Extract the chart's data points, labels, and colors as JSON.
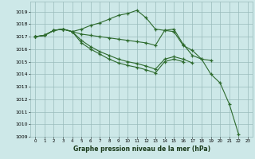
{
  "xlabel": "Graphe pression niveau de la mer (hPa)",
  "background_color": "#cde8e8",
  "grid_color": "#99bbbb",
  "line_color": "#2d6a2d",
  "xlim": [
    -0.5,
    23.5
  ],
  "ylim": [
    1009.0,
    1019.8
  ],
  "yticks": [
    1009,
    1010,
    1011,
    1012,
    1013,
    1014,
    1015,
    1016,
    1017,
    1018,
    1019
  ],
  "xticks": [
    0,
    1,
    2,
    3,
    4,
    5,
    6,
    7,
    8,
    9,
    10,
    11,
    12,
    13,
    14,
    15,
    16,
    17,
    18,
    19,
    20,
    21,
    22,
    23
  ],
  "lines": [
    {
      "x": [
        0,
        1,
        2,
        3,
        4,
        5,
        6,
        7,
        8,
        9,
        10,
        11,
        12,
        13,
        14,
        15,
        16,
        17,
        18,
        19,
        20,
        21,
        22
      ],
      "y": [
        1017.0,
        1017.1,
        1017.5,
        1017.6,
        1017.4,
        1017.6,
        1017.9,
        1018.1,
        1018.4,
        1018.7,
        1018.85,
        1019.1,
        1018.5,
        1017.6,
        1017.5,
        1017.4,
        1016.3,
        1015.9,
        1015.2,
        1014.0,
        1013.3,
        1011.6,
        1009.2
      ]
    },
    {
      "x": [
        0,
        1,
        2,
        3,
        4,
        5,
        6,
        7,
        8,
        9,
        10,
        11,
        12,
        13,
        14,
        15,
        16,
        17,
        18,
        19,
        20,
        21
      ],
      "y": [
        1017.0,
        1017.1,
        1017.5,
        1017.6,
        1017.4,
        1017.2,
        1017.1,
        1017.0,
        1016.9,
        1016.8,
        1016.7,
        1016.6,
        1016.5,
        1016.3,
        1017.5,
        1017.6,
        1016.4,
        1015.5,
        1015.2,
        1015.1,
        null,
        null
      ]
    },
    {
      "x": [
        0,
        1,
        2,
        3,
        4,
        5,
        6,
        7,
        8,
        9,
        10,
        11,
        12,
        13,
        14,
        15,
        16,
        17,
        18
      ],
      "y": [
        1017.0,
        1017.1,
        1017.5,
        1017.6,
        1017.4,
        1016.7,
        1016.2,
        1015.8,
        1015.5,
        1015.2,
        1015.0,
        1014.85,
        1014.65,
        1014.4,
        1015.2,
        1015.4,
        1015.2,
        1014.9,
        null
      ]
    },
    {
      "x": [
        0,
        1,
        2,
        3,
        4,
        5,
        6,
        7,
        8,
        9,
        10,
        11,
        12,
        13,
        14,
        15,
        16,
        17,
        18,
        19
      ],
      "y": [
        1017.0,
        1017.1,
        1017.5,
        1017.6,
        1017.4,
        1016.5,
        1016.0,
        1015.6,
        1015.2,
        1014.9,
        1014.7,
        1014.55,
        1014.35,
        1014.1,
        1015.0,
        1015.2,
        1015.0,
        null,
        null,
        null
      ]
    }
  ]
}
